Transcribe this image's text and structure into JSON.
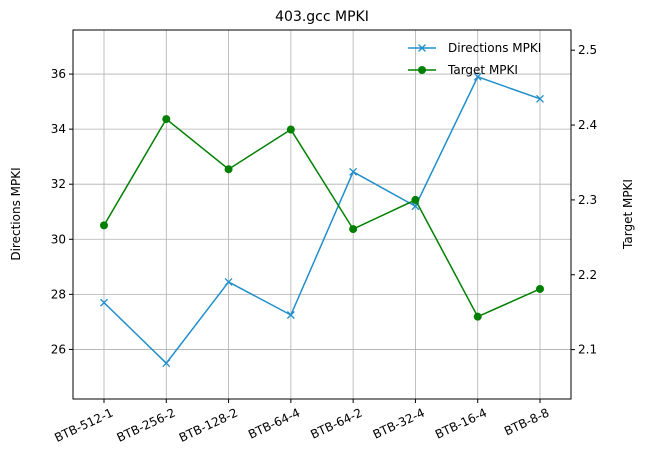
{
  "chart_data": {
    "type": "line",
    "title": "403.gcc MPKI",
    "categories": [
      "BTB-512-1",
      "BTB-256-2",
      "BTB-128-2",
      "BTB-64-4",
      "BTB-64-2",
      "BTB-32-4",
      "BTB-16-4",
      "BTB-8-8"
    ],
    "ylabel_left": "Directions MPKI",
    "ylabel_right": "Target MPKI",
    "ylim_left": [
      24.2,
      37.6
    ],
    "ylim_right": [
      2.034,
      2.527
    ],
    "yticks_left": [
      "26",
      "28",
      "30",
      "32",
      "34",
      "36"
    ],
    "yticks_right": [
      "2.1",
      "2.2",
      "2.3",
      "2.4",
      "2.5"
    ],
    "grid": true,
    "legend_position": "top-right",
    "series": [
      {
        "name": "Directions MPKI",
        "axis": "left",
        "marker": "x",
        "color": "#1f8fcc",
        "values": [
          27.7,
          25.5,
          28.45,
          27.25,
          32.45,
          31.2,
          35.9,
          35.1
        ]
      },
      {
        "name": "Target MPKI",
        "axis": "right",
        "marker": "circle",
        "color": "#008000",
        "values": [
          2.266,
          2.408,
          2.341,
          2.394,
          2.261,
          2.3,
          2.144,
          2.181
        ]
      }
    ]
  }
}
